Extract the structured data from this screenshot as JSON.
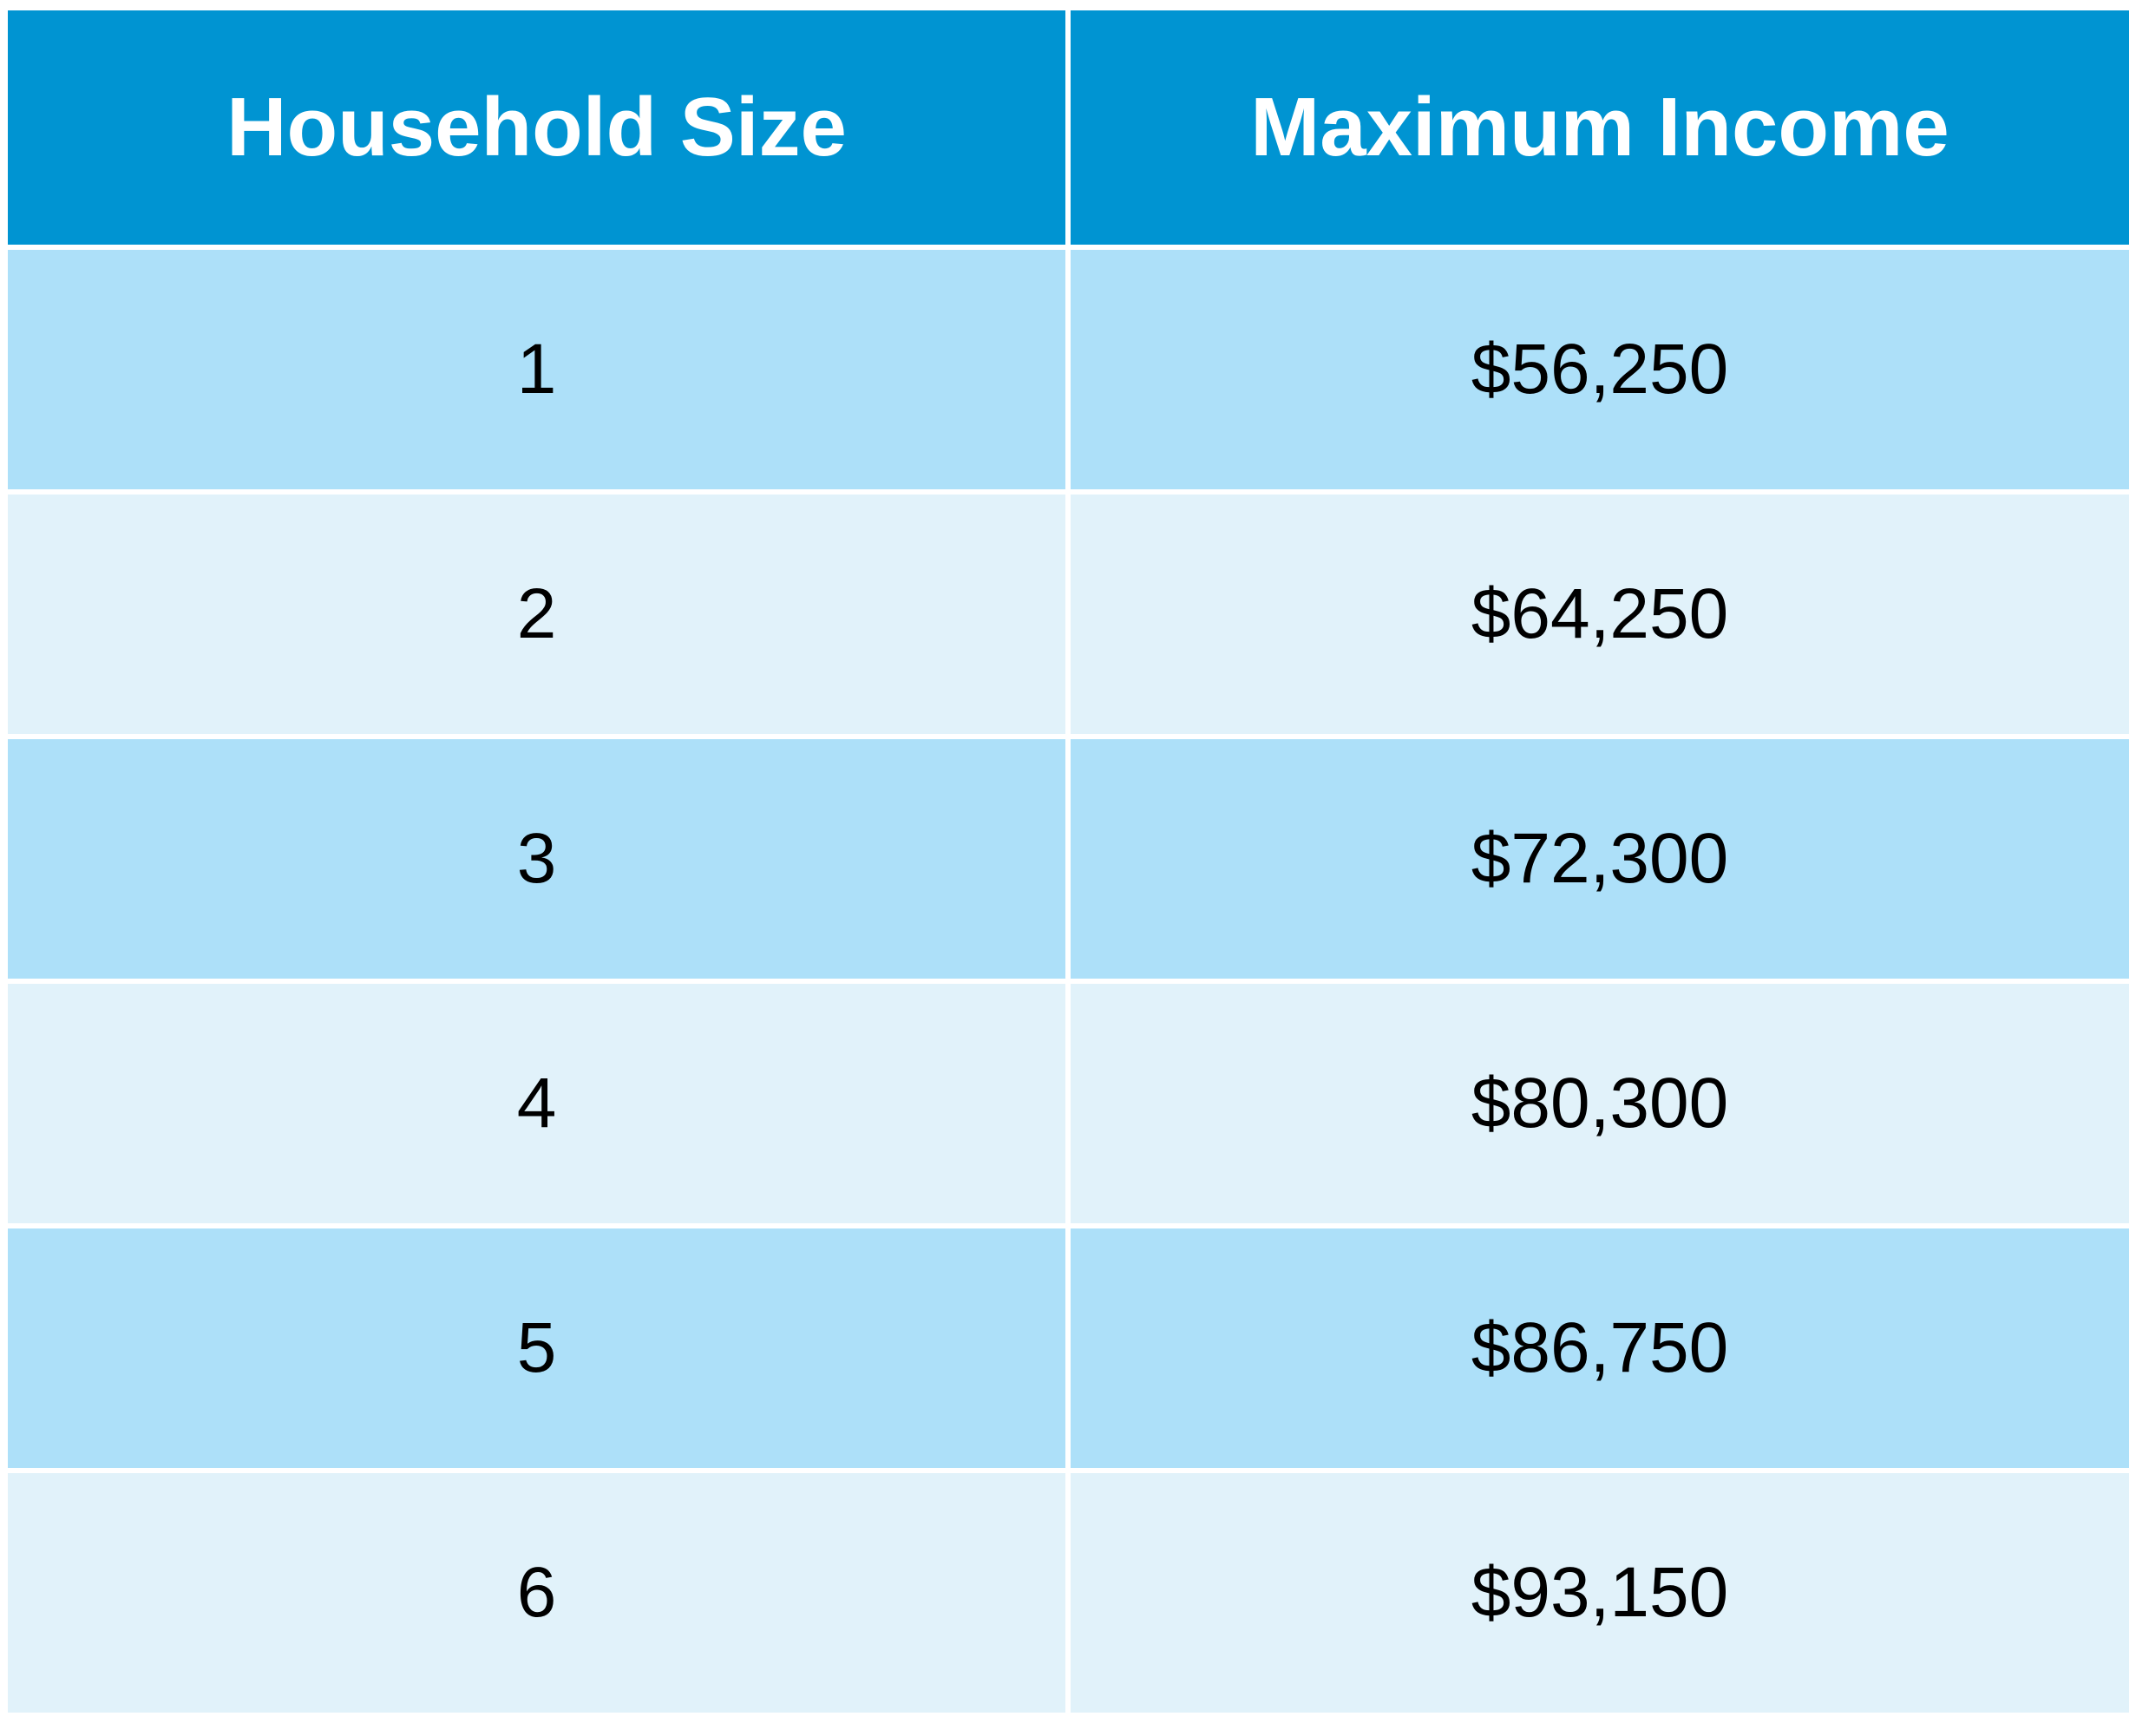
{
  "colors": {
    "header_bg": "#0094D2",
    "row_dark": "#ADE0F9",
    "row_light": "#E1F2FA",
    "header_text": "#FFFFFF",
    "body_text": "#000000"
  },
  "table": {
    "headers": [
      "Household Size",
      "Maximum Income"
    ],
    "rows": [
      {
        "size": "1",
        "income": "$56,250"
      },
      {
        "size": "2",
        "income": "$64,250"
      },
      {
        "size": "3",
        "income": "$72,300"
      },
      {
        "size": "4",
        "income": "$80,300"
      },
      {
        "size": "5",
        "income": "$86,750"
      },
      {
        "size": "6",
        "income": "$93,150"
      }
    ]
  }
}
